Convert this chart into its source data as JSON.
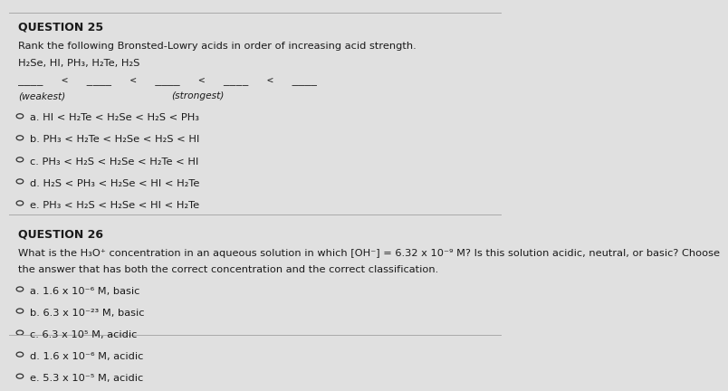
{
  "bg_color": "#e0e0e0",
  "title1": "QUESTION 25",
  "q25_body": "Rank the following Bronsted-Lowry acids in order of increasing acid strength.",
  "q25_compounds": "H₂Se, HI, PH₃, H₂Te, H₂S",
  "q25_blank_line": "____   <   ____   <   ____   <   ____   <   ____",
  "q25_weakest": "(weakest)",
  "q25_strongest": "(strongest)",
  "q25_options": [
    "a. HI < H₂Te < H₂Se < H₂S < PH₃",
    "b. PH₃ < H₂Te < H₂Se < H₂S < HI",
    "c. PH₃ < H₂S < H₂Se < H₂Te < HI",
    "d. H₂S < PH₃ < H₂Se < HI < H₂Te",
    "e. PH₃ < H₂S < H₂Se < HI < H₂Te"
  ],
  "title2": "QUESTION 26",
  "q26_body1": "What is the H₃O⁺ concentration in an aqueous solution in which [OH⁻] = 6.32 x 10⁻⁹ M? Is this solution acidic, neutral, or basic? Choose",
  "q26_body2": "the answer that has both the correct concentration and the correct classification.",
  "q26_options": [
    "a. 1.6 x 10⁻⁶ M, basic",
    "b. 6.3 x 10⁻²³ M, basic",
    "c. 6.3 x 10⁵ M, acidic",
    "d. 1.6 x 10⁻⁶ M, acidic",
    "e. 5.3 x 10⁻⁵ M, acidic"
  ],
  "font_color": "#1a1a1a",
  "font_size_title": 9,
  "font_size_body": 8.2,
  "font_size_option": 8.2,
  "separator_color": "#aaaaaa",
  "circle_color": "#333333"
}
